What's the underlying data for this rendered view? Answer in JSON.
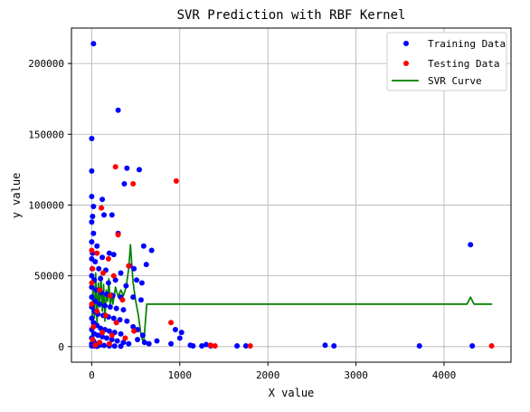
{
  "chart_data": {
    "type": "scatter",
    "title": "SVR Prediction with RBF Kernel",
    "xlabel": "X value",
    "ylabel": "y value",
    "xlim": [
      -230,
      4760
    ],
    "ylim": [
      -11000,
      225000
    ],
    "x_ticks": [
      0,
      1000,
      2000,
      3000,
      4000
    ],
    "y_ticks": [
      0,
      50000,
      100000,
      150000,
      200000
    ],
    "grid": true,
    "legend_position": "top-right",
    "colors": {
      "training": "#0000ff",
      "testing": "#ff0000",
      "curve": "#008000"
    },
    "series": [
      {
        "name": "Training Data",
        "kind": "scatter",
        "points": [
          [
            20,
            214000
          ],
          [
            300,
            167000
          ],
          [
            0,
            147000
          ],
          [
            0,
            124000
          ],
          [
            400,
            126000
          ],
          [
            540,
            125000
          ],
          [
            0,
            106000
          ],
          [
            120,
            104000
          ],
          [
            20,
            99000
          ],
          [
            370,
            115000
          ],
          [
            0,
            88000
          ],
          [
            10,
            92000
          ],
          [
            140,
            93000
          ],
          [
            230,
            93000
          ],
          [
            20,
            80000
          ],
          [
            300,
            80000
          ],
          [
            0,
            74000
          ],
          [
            60,
            71000
          ],
          [
            10,
            66000
          ],
          [
            200,
            66000
          ],
          [
            590,
            71000
          ],
          [
            680,
            68000
          ],
          [
            0,
            62000
          ],
          [
            40,
            60000
          ],
          [
            120,
            63000
          ],
          [
            250,
            65000
          ],
          [
            430,
            57000
          ],
          [
            620,
            58000
          ],
          [
            5,
            55000
          ],
          [
            80,
            55000
          ],
          [
            160,
            54000
          ],
          [
            330,
            52000
          ],
          [
            480,
            55000
          ],
          [
            570,
            45000
          ],
          [
            0,
            50000
          ],
          [
            30,
            47000
          ],
          [
            100,
            48000
          ],
          [
            190,
            45000
          ],
          [
            270,
            47000
          ],
          [
            390,
            43000
          ],
          [
            510,
            47000
          ],
          [
            0,
            42000
          ],
          [
            50,
            40000
          ],
          [
            110,
            38000
          ],
          [
            170,
            37000
          ],
          [
            240,
            36000
          ],
          [
            330,
            35000
          ],
          [
            470,
            35000
          ],
          [
            560,
            33000
          ],
          [
            0,
            35000
          ],
          [
            40,
            32000
          ],
          [
            90,
            30000
          ],
          [
            150,
            29000
          ],
          [
            210,
            28000
          ],
          [
            280,
            27000
          ],
          [
            360,
            26000
          ],
          [
            0,
            28000
          ],
          [
            30,
            25000
          ],
          [
            70,
            23000
          ],
          [
            130,
            22000
          ],
          [
            190,
            21000
          ],
          [
            250,
            20000
          ],
          [
            320,
            19000
          ],
          [
            400,
            18000
          ],
          [
            470,
            14000
          ],
          [
            0,
            20000
          ],
          [
            20,
            17000
          ],
          [
            60,
            15000
          ],
          [
            100,
            13000
          ],
          [
            150,
            12000
          ],
          [
            200,
            11000
          ],
          [
            260,
            10000
          ],
          [
            330,
            9000
          ],
          [
            520,
            12000
          ],
          [
            580,
            8000
          ],
          [
            0,
            12000
          ],
          [
            30,
            9000
          ],
          [
            70,
            8000
          ],
          [
            120,
            7000
          ],
          [
            170,
            6000
          ],
          [
            230,
            5000
          ],
          [
            290,
            4000
          ],
          [
            360,
            3000
          ],
          [
            420,
            2000
          ],
          [
            520,
            5000
          ],
          [
            600,
            3000
          ],
          [
            650,
            2000
          ],
          [
            0,
            6000
          ],
          [
            20,
            4000
          ],
          [
            50,
            2000
          ],
          [
            90,
            1000
          ],
          [
            140,
            800
          ],
          [
            200,
            500
          ],
          [
            260,
            400
          ],
          [
            330,
            300
          ],
          [
            0,
            2000
          ],
          [
            10,
            1000
          ],
          [
            30,
            500
          ],
          [
            60,
            200
          ],
          [
            0,
            500
          ],
          [
            740,
            4000
          ],
          [
            900,
            2000
          ],
          [
            950,
            12000
          ],
          [
            1000,
            6000
          ],
          [
            1020,
            10000
          ],
          [
            1120,
            1000
          ],
          [
            1150,
            500
          ],
          [
            1250,
            500
          ],
          [
            1300,
            1500
          ],
          [
            1350,
            500
          ],
          [
            1650,
            500
          ],
          [
            1750,
            500
          ],
          [
            2650,
            1000
          ],
          [
            2750,
            500
          ],
          [
            3720,
            500
          ],
          [
            4300,
            72000
          ],
          [
            4320,
            500
          ]
        ]
      },
      {
        "name": "Testing Data",
        "kind": "scatter",
        "points": [
          [
            270,
            127000
          ],
          [
            470,
            115000
          ],
          [
            960,
            117000
          ],
          [
            110,
            98000
          ],
          [
            300,
            79000
          ],
          [
            0,
            68000
          ],
          [
            60,
            66000
          ],
          [
            190,
            62000
          ],
          [
            420,
            57000
          ],
          [
            10,
            55000
          ],
          [
            130,
            52000
          ],
          [
            250,
            50000
          ],
          [
            0,
            45000
          ],
          [
            90,
            40000
          ],
          [
            210,
            36000
          ],
          [
            350,
            33000
          ],
          [
            0,
            30000
          ],
          [
            60,
            25000
          ],
          [
            160,
            22000
          ],
          [
            280,
            17000
          ],
          [
            20,
            14000
          ],
          [
            120,
            10000
          ],
          [
            230,
            8000
          ],
          [
            380,
            6000
          ],
          [
            10,
            5000
          ],
          [
            90,
            3000
          ],
          [
            200,
            2000
          ],
          [
            480,
            11000
          ],
          [
            40,
            1000
          ],
          [
            900,
            17000
          ],
          [
            1350,
            1000
          ],
          [
            1400,
            500
          ],
          [
            1800,
            500
          ],
          [
            4540,
            500
          ]
        ]
      },
      {
        "name": "SVR Curve",
        "kind": "line",
        "points": [
          [
            0,
            5000
          ],
          [
            15,
            40000
          ],
          [
            30,
            20000
          ],
          [
            45,
            52000
          ],
          [
            60,
            15000
          ],
          [
            75,
            45000
          ],
          [
            90,
            28000
          ],
          [
            105,
            50000
          ],
          [
            120,
            25000
          ],
          [
            135,
            44000
          ],
          [
            150,
            18000
          ],
          [
            165,
            40000
          ],
          [
            180,
            32000
          ],
          [
            195,
            48000
          ],
          [
            210,
            28000
          ],
          [
            225,
            38000
          ],
          [
            240,
            30000
          ],
          [
            270,
            42000
          ],
          [
            300,
            35000
          ],
          [
            330,
            40000
          ],
          [
            360,
            36000
          ],
          [
            390,
            42000
          ],
          [
            420,
            55000
          ],
          [
            440,
            72000
          ],
          [
            455,
            58000
          ],
          [
            470,
            45000
          ],
          [
            500,
            32000
          ],
          [
            530,
            22000
          ],
          [
            560,
            8000
          ],
          [
            590,
            2000
          ],
          [
            625,
            30000
          ],
          [
            1000,
            30000
          ],
          [
            2000,
            30000
          ],
          [
            3000,
            30000
          ],
          [
            4200,
            30000
          ],
          [
            4260,
            30000
          ],
          [
            4300,
            35000
          ],
          [
            4340,
            30000
          ],
          [
            4540,
            30000
          ]
        ]
      }
    ]
  }
}
